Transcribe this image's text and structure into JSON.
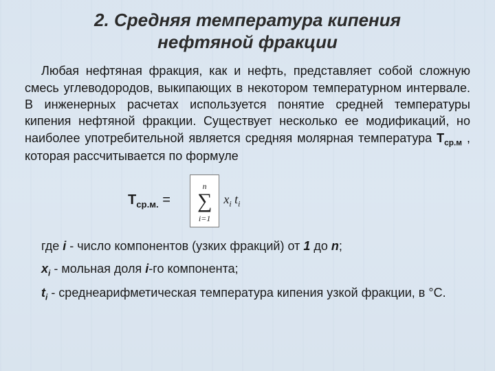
{
  "title_line1": "2. Средняя температура кипения",
  "title_line2": "нефтяной фракции",
  "para_lead": "Любая нефтяная фракция, как и нефть, представляет собой сложную смесь углеводородов, выкипающих в некотором температурном интервале. В инженерных расчетах используется понятие средней температуры кипения нефтяной фракции. Существует несколько ее модификаций, но наиболее употребительной является средняя молярная температура ",
  "para_var": "Т",
  "para_var_sub": "ср.м",
  "para_tail": " , которая рассчитывается по формуле",
  "formula_lhs_main": "Т",
  "formula_lhs_sub": "ср.м.",
  "formula_eq": " = ",
  "sum_upper": "n",
  "sum_lower": "i=1",
  "sum_term_x": "x",
  "sum_term_xi": "i",
  "sum_term_t": " t",
  "sum_term_ti": "i",
  "def1_pre": "где ",
  "def1_i": "i",
  "def1_mid": " - число компонентов (узких фракций) от ",
  "def1_one": "1",
  "def1_mid2": " до ",
  "def1_n": "n",
  "def1_tail": ";",
  "def2_x": "x",
  "def2_xi": "i",
  "def2_mid1": " - мольная доля ",
  "def2_i2": "i",
  "def2_tail": "-го компонента;",
  "def3_t": "t",
  "def3_ti": "i",
  "def3_rest": " - среднеарифметическая температура кипения узкой фракции, в °С."
}
